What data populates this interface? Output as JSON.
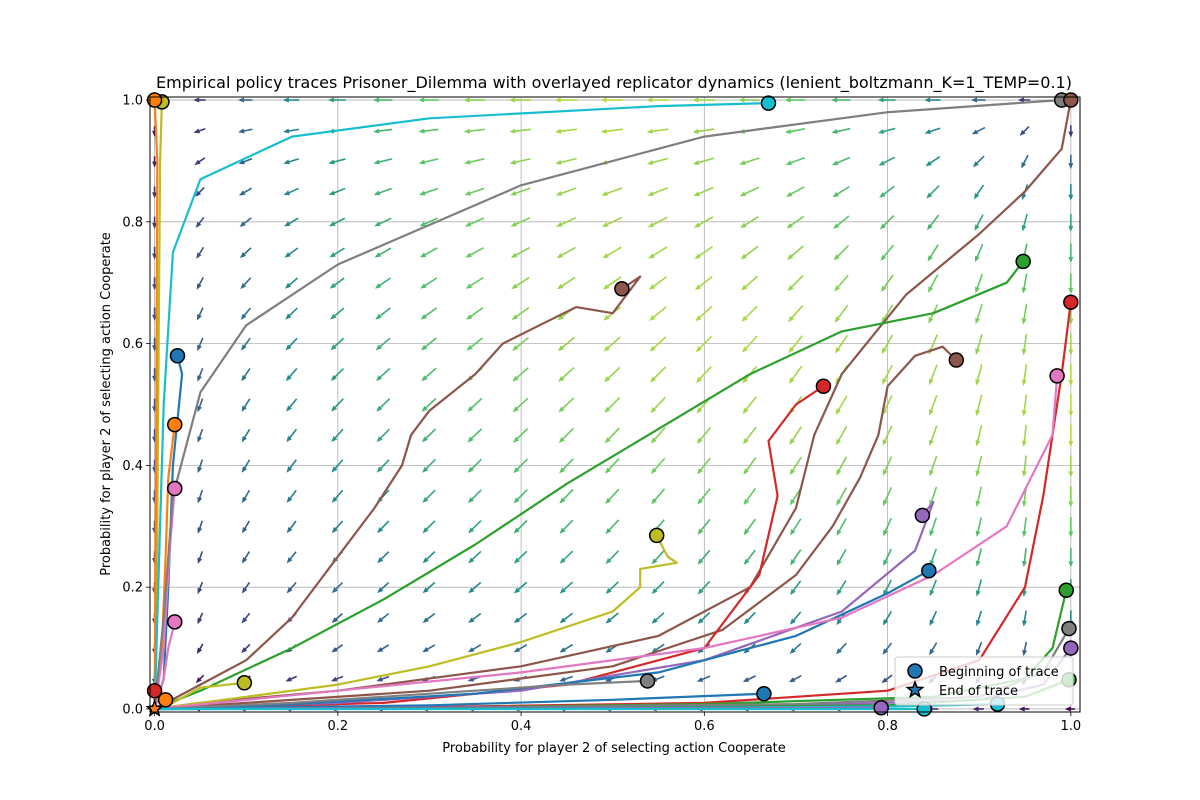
{
  "chart_data": {
    "type": "line",
    "title": "Empirical policy traces Prisoner_Dilemma with overlayed replicator dynamics (lenient_boltzmann_K=1_TEMP=0.1)",
    "xlabel": "Probability for player 2 of selecting action Cooperate",
    "ylabel": "Probability for player 2 of selecting action Cooperate",
    "xlim": [
      -0.005,
      1.01
    ],
    "ylim": [
      -0.005,
      1.005
    ],
    "xticks": [
      0.0,
      0.2,
      0.4,
      0.6,
      0.8,
      1.0
    ],
    "yticks": [
      0.0,
      0.2,
      0.4,
      0.6,
      0.8,
      1.0
    ],
    "xtick_labels": [
      "0.0",
      "0.2",
      "0.4",
      "0.6",
      "0.8",
      "1.0"
    ],
    "ytick_labels": [
      "0.0",
      "0.2",
      "0.4",
      "0.6",
      "0.8",
      "1.0"
    ],
    "grid": true,
    "legend": {
      "placement": "lower-right",
      "entries": [
        {
          "label": "Beginning of trace",
          "marker": "circle"
        },
        {
          "label": "End of trace",
          "marker": "star"
        }
      ]
    },
    "series": [
      {
        "color": "#1f77b4",
        "points": [
          [
            0.025,
            0.58
          ],
          [
            0.03,
            0.55
          ],
          [
            0.02,
            0.4
          ],
          [
            0.015,
            0.2
          ],
          [
            0.01,
            0.05
          ],
          [
            0.0,
            0.0
          ]
        ]
      },
      {
        "color": "#ff7f0e",
        "points": [
          [
            0.022,
            0.467
          ],
          [
            0.015,
            0.38
          ],
          [
            0.012,
            0.25
          ],
          [
            0.008,
            0.1
          ],
          [
            0.0,
            0.0
          ]
        ]
      },
      {
        "color": "#e377c2",
        "points": [
          [
            0.022,
            0.362
          ],
          [
            0.016,
            0.25
          ],
          [
            0.01,
            0.1
          ],
          [
            0.0,
            0.0
          ]
        ]
      },
      {
        "color": "#e377c2",
        "points": [
          [
            0.022,
            0.143
          ],
          [
            0.015,
            0.1
          ],
          [
            0.01,
            0.05
          ],
          [
            0.0,
            0.0
          ]
        ]
      },
      {
        "color": "#bcbd22",
        "points": [
          [
            0.008,
            0.997
          ],
          [
            0.006,
            0.9
          ],
          [
            0.004,
            0.5
          ],
          [
            0.002,
            0.1
          ],
          [
            0.0,
            0.0
          ]
        ]
      },
      {
        "color": "#ff7f0e",
        "points": [
          [
            0.0,
            1.0
          ],
          [
            0.003,
            0.9
          ],
          [
            0.002,
            0.5
          ],
          [
            0.0,
            0.0
          ]
        ]
      },
      {
        "color": "#17becf",
        "points": [
          [
            0.67,
            0.995
          ],
          [
            0.55,
            0.99
          ],
          [
            0.3,
            0.97
          ],
          [
            0.15,
            0.94
          ],
          [
            0.05,
            0.87
          ],
          [
            0.02,
            0.75
          ],
          [
            0.01,
            0.5
          ],
          [
            0.0,
            0.0
          ]
        ]
      },
      {
        "color": "#7f7f7f",
        "points": [
          [
            0.99,
            1.0
          ],
          [
            0.8,
            0.98
          ],
          [
            0.6,
            0.94
          ],
          [
            0.4,
            0.86
          ],
          [
            0.2,
            0.73
          ],
          [
            0.1,
            0.63
          ],
          [
            0.05,
            0.52
          ],
          [
            0.02,
            0.35
          ],
          [
            0.01,
            0.15
          ],
          [
            0.0,
            0.0
          ]
        ]
      },
      {
        "color": "#8c564b",
        "points": [
          [
            1.0,
            1.0
          ],
          [
            0.99,
            0.92
          ],
          [
            0.95,
            0.85
          ],
          [
            0.9,
            0.78
          ],
          [
            0.82,
            0.68
          ],
          [
            0.75,
            0.55
          ],
          [
            0.72,
            0.45
          ],
          [
            0.7,
            0.33
          ],
          [
            0.65,
            0.2
          ],
          [
            0.55,
            0.12
          ],
          [
            0.4,
            0.07
          ],
          [
            0.2,
            0.03
          ],
          [
            0.05,
            0.01
          ],
          [
            0.0,
            0.0
          ]
        ]
      },
      {
        "color": "#8c564b",
        "points": [
          [
            0.51,
            0.69
          ],
          [
            0.53,
            0.71
          ],
          [
            0.5,
            0.65
          ],
          [
            0.46,
            0.66
          ],
          [
            0.42,
            0.63
          ],
          [
            0.38,
            0.6
          ],
          [
            0.35,
            0.55
          ],
          [
            0.3,
            0.49
          ],
          [
            0.28,
            0.45
          ],
          [
            0.27,
            0.4
          ],
          [
            0.24,
            0.33
          ],
          [
            0.2,
            0.25
          ],
          [
            0.15,
            0.15
          ],
          [
            0.1,
            0.08
          ],
          [
            0.05,
            0.04
          ],
          [
            0.0,
            0.0
          ]
        ]
      },
      {
        "color": "#8c564b",
        "points": [
          [
            0.875,
            0.573
          ],
          [
            0.86,
            0.595
          ],
          [
            0.83,
            0.58
          ],
          [
            0.8,
            0.53
          ],
          [
            0.79,
            0.45
          ],
          [
            0.77,
            0.38
          ],
          [
            0.74,
            0.3
          ],
          [
            0.7,
            0.22
          ],
          [
            0.62,
            0.13
          ],
          [
            0.5,
            0.07
          ],
          [
            0.3,
            0.03
          ],
          [
            0.1,
            0.01
          ],
          [
            0.0,
            0.0
          ]
        ]
      },
      {
        "color": "#2ca02c",
        "points": [
          [
            0.948,
            0.735
          ],
          [
            0.93,
            0.7
          ],
          [
            0.85,
            0.65
          ],
          [
            0.75,
            0.62
          ],
          [
            0.65,
            0.55
          ],
          [
            0.55,
            0.46
          ],
          [
            0.45,
            0.37
          ],
          [
            0.35,
            0.27
          ],
          [
            0.25,
            0.18
          ],
          [
            0.15,
            0.1
          ],
          [
            0.05,
            0.03
          ],
          [
            0.0,
            0.0
          ]
        ]
      },
      {
        "color": "#d62728",
        "points": [
          [
            0.73,
            0.53
          ],
          [
            0.7,
            0.5
          ],
          [
            0.67,
            0.44
          ],
          [
            0.68,
            0.35
          ],
          [
            0.66,
            0.22
          ],
          [
            0.6,
            0.1
          ],
          [
            0.45,
            0.04
          ],
          [
            0.25,
            0.01
          ],
          [
            0.0,
            0.0
          ]
        ]
      },
      {
        "color": "#d62728",
        "points": [
          [
            1.0,
            0.668
          ],
          [
            0.99,
            0.55
          ],
          [
            0.97,
            0.35
          ],
          [
            0.95,
            0.2
          ],
          [
            0.9,
            0.08
          ],
          [
            0.8,
            0.03
          ],
          [
            0.6,
            0.01
          ],
          [
            0.3,
            0.003
          ],
          [
            0.0,
            0.0
          ]
        ]
      },
      {
        "color": "#bcbd22",
        "points": [
          [
            0.548,
            0.285
          ],
          [
            0.56,
            0.25
          ],
          [
            0.57,
            0.24
          ],
          [
            0.53,
            0.23
          ],
          [
            0.53,
            0.2
          ],
          [
            0.5,
            0.16
          ],
          [
            0.4,
            0.11
          ],
          [
            0.3,
            0.07
          ],
          [
            0.2,
            0.04
          ],
          [
            0.1,
            0.02
          ],
          [
            0.0,
            0.0
          ]
        ]
      },
      {
        "color": "#bcbd22",
        "points": [
          [
            0.098,
            0.043
          ],
          [
            0.05,
            0.035
          ],
          [
            0.02,
            0.01
          ],
          [
            0.0,
            0.0
          ]
        ]
      },
      {
        "color": "#9467bd",
        "points": [
          [
            0.838,
            0.318
          ],
          [
            0.85,
            0.34
          ],
          [
            0.83,
            0.26
          ],
          [
            0.75,
            0.16
          ],
          [
            0.6,
            0.08
          ],
          [
            0.4,
            0.03
          ],
          [
            0.2,
            0.01
          ],
          [
            0.0,
            0.0
          ]
        ]
      },
      {
        "color": "#1f77b4",
        "points": [
          [
            0.845,
            0.227
          ],
          [
            0.8,
            0.19
          ],
          [
            0.7,
            0.12
          ],
          [
            0.55,
            0.06
          ],
          [
            0.35,
            0.025
          ],
          [
            0.15,
            0.008
          ],
          [
            0.0,
            0.0
          ]
        ]
      },
      {
        "color": "#e377c2",
        "points": [
          [
            0.985,
            0.547
          ],
          [
            0.98,
            0.45
          ],
          [
            0.93,
            0.3
          ],
          [
            0.85,
            0.22
          ],
          [
            0.75,
            0.15
          ],
          [
            0.6,
            0.1
          ],
          [
            0.4,
            0.06
          ],
          [
            0.2,
            0.03
          ],
          [
            0.0,
            0.0
          ]
        ]
      },
      {
        "color": "#7f7f7f",
        "points": [
          [
            0.538,
            0.046
          ],
          [
            0.45,
            0.04
          ],
          [
            0.3,
            0.025
          ],
          [
            0.15,
            0.01
          ],
          [
            0.0,
            0.0
          ]
        ]
      },
      {
        "color": "#2ca02c",
        "points": [
          [
            0.995,
            0.195
          ],
          [
            0.98,
            0.1
          ],
          [
            0.95,
            0.05
          ],
          [
            0.85,
            0.02
          ],
          [
            0.6,
            0.008
          ],
          [
            0.3,
            0.002
          ],
          [
            0.0,
            0.0
          ]
        ]
      },
      {
        "color": "#1f77b4",
        "points": [
          [
            0.665,
            0.025
          ],
          [
            0.5,
            0.015
          ],
          [
            0.3,
            0.006
          ],
          [
            0.1,
            0.002
          ],
          [
            0.0,
            0.0
          ]
        ]
      },
      {
        "color": "#7f7f7f",
        "points": [
          [
            0.998,
            0.132
          ],
          [
            0.97,
            0.06
          ],
          [
            0.9,
            0.02
          ],
          [
            0.7,
            0.008
          ],
          [
            0.4,
            0.003
          ],
          [
            0.0,
            0.0
          ]
        ]
      },
      {
        "color": "#9467bd",
        "points": [
          [
            1.0,
            0.1
          ],
          [
            0.97,
            0.04
          ],
          [
            0.9,
            0.015
          ],
          [
            0.7,
            0.005
          ],
          [
            0.0,
            0.0
          ]
        ]
      },
      {
        "color": "#2ca02c",
        "points": [
          [
            0.998,
            0.048
          ],
          [
            0.95,
            0.02
          ],
          [
            0.8,
            0.006
          ],
          [
            0.5,
            0.002
          ],
          [
            0.0,
            0.0
          ]
        ]
      },
      {
        "color": "#17becf",
        "points": [
          [
            0.92,
            0.008
          ],
          [
            0.8,
            0.004
          ],
          [
            0.5,
            0.001
          ],
          [
            0.0,
            0.0
          ]
        ]
      },
      {
        "color": "#9467bd",
        "points": [
          [
            0.793,
            0.002
          ],
          [
            0.5,
            0.001
          ],
          [
            0.0,
            0.0
          ]
        ]
      },
      {
        "color": "#17becf",
        "points": [
          [
            0.84,
            0.0
          ],
          [
            0.5,
            0.0
          ],
          [
            0.0,
            0.0
          ]
        ]
      },
      {
        "color": "#d62728",
        "points": [
          [
            0.0,
            0.03
          ],
          [
            0.0,
            0.0
          ]
        ]
      },
      {
        "color": "#ff7f0e",
        "points": [
          [
            0.012,
            0.015
          ],
          [
            0.005,
            0.005
          ],
          [
            0.0,
            0.0
          ]
        ]
      }
    ],
    "quiver_grid": [
      0.0,
      0.05,
      0.1,
      0.15,
      0.2,
      0.25,
      0.3,
      0.35,
      0.4,
      0.45,
      0.5,
      0.55,
      0.6,
      0.65,
      0.7,
      0.75,
      0.8,
      0.85,
      0.9,
      0.95,
      1.0
    ],
    "quiver_colormap": "viridis"
  }
}
